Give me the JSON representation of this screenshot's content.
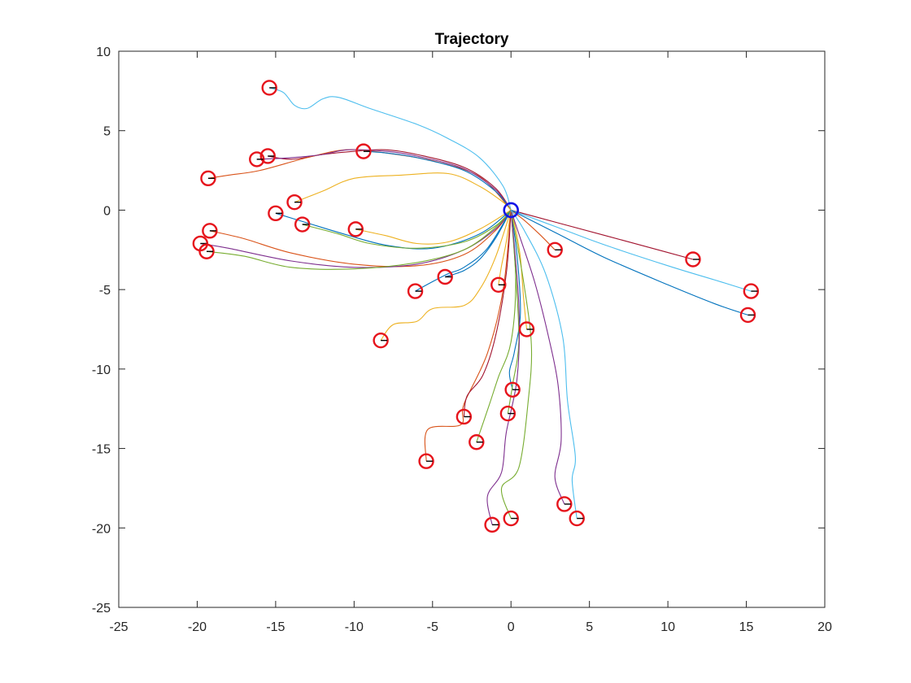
{
  "chart_data": {
    "type": "line",
    "title": "Trajectory",
    "xlabel": "",
    "ylabel": "",
    "xlim": [
      -25,
      20
    ],
    "ylim": [
      -25,
      10
    ],
    "xticks": [
      -25,
      -20,
      -15,
      -10,
      -5,
      0,
      5,
      10,
      15,
      20
    ],
    "yticks": [
      -25,
      -20,
      -15,
      -10,
      -5,
      0,
      5,
      10
    ],
    "grid": false,
    "legend": "none",
    "colors": {
      "axis": "#262626",
      "agent_marker": "#e6141c",
      "target_marker": "#1414e6"
    },
    "target": {
      "x": 0,
      "y": 0
    },
    "series": [
      {
        "color": "#4DBEEE",
        "points": [
          [
            -15.4,
            7.7
          ],
          [
            -14.5,
            7.4
          ],
          [
            -13.8,
            6.6
          ],
          [
            -13,
            6.4
          ],
          [
            -12,
            7.0
          ],
          [
            -11,
            7.1
          ],
          [
            -9,
            6.4
          ],
          [
            -6,
            5.4
          ],
          [
            -4,
            4.5
          ],
          [
            -2,
            3.3
          ],
          [
            -0.5,
            1.5
          ],
          [
            0,
            0
          ]
        ]
      },
      {
        "color": "#A2142F",
        "points": [
          [
            -15.5,
            3.4
          ],
          [
            -14,
            3.2
          ],
          [
            -12,
            3.5
          ],
          [
            -10,
            3.7
          ],
          [
            -8,
            3.8
          ],
          [
            -6,
            3.5
          ],
          [
            -3,
            2.7
          ],
          [
            -1,
            1.4
          ],
          [
            0,
            0
          ]
        ]
      },
      {
        "color": "#D95319",
        "points": [
          [
            -19.3,
            2.0
          ],
          [
            -18,
            2.2
          ],
          [
            -16,
            2.5
          ],
          [
            -13,
            3.3
          ],
          [
            -10.5,
            3.8
          ],
          [
            -8,
            3.6
          ],
          [
            -5,
            3.1
          ],
          [
            -2,
            2.1
          ],
          [
            0,
            0
          ]
        ]
      },
      {
        "color": "#7E2F8E",
        "points": [
          [
            -16.2,
            3.2
          ],
          [
            -14,
            3.3
          ],
          [
            -12,
            3.5
          ],
          [
            -10.4,
            3.8
          ],
          [
            -8,
            3.7
          ],
          [
            -6,
            3.4
          ],
          [
            -3,
            2.6
          ],
          [
            -1,
            1.3
          ],
          [
            0,
            0
          ]
        ]
      },
      {
        "color": "#0072BD",
        "points": [
          [
            -9.4,
            3.7
          ],
          [
            -8,
            3.6
          ],
          [
            -6,
            3.3
          ],
          [
            -3,
            2.5
          ],
          [
            -1,
            1.2
          ],
          [
            0,
            0
          ]
        ]
      },
      {
        "color": "#EDB120",
        "points": [
          [
            -13.8,
            0.5
          ],
          [
            -12,
            1.2
          ],
          [
            -10,
            2.0
          ],
          [
            -7,
            2.2
          ],
          [
            -4,
            2.3
          ],
          [
            -2,
            1.5
          ],
          [
            -0.5,
            0.5
          ],
          [
            0,
            0
          ]
        ]
      },
      {
        "color": "#0072BD",
        "points": [
          [
            -15.0,
            -0.2
          ],
          [
            -13,
            -0.8
          ],
          [
            -11,
            -1.4
          ],
          [
            -8,
            -2.2
          ],
          [
            -5,
            -2.4
          ],
          [
            -2,
            -1.5
          ],
          [
            0,
            0
          ]
        ]
      },
      {
        "color": "#77AC30",
        "points": [
          [
            -13.3,
            -0.9
          ],
          [
            -11,
            -1.5
          ],
          [
            -9,
            -2.1
          ],
          [
            -6,
            -2.4
          ],
          [
            -3,
            -2.0
          ],
          [
            -1,
            -1.0
          ],
          [
            0,
            0
          ]
        ]
      },
      {
        "color": "#EDB120",
        "points": [
          [
            -9.9,
            -1.2
          ],
          [
            -8,
            -1.6
          ],
          [
            -6,
            -2.1
          ],
          [
            -4,
            -2.0
          ],
          [
            -2,
            -1.2
          ],
          [
            0,
            0
          ]
        ]
      },
      {
        "color": "#D95319",
        "points": [
          [
            -19.2,
            -1.3
          ],
          [
            -17,
            -1.8
          ],
          [
            -14,
            -2.7
          ],
          [
            -10,
            -3.4
          ],
          [
            -6,
            -3.5
          ],
          [
            -3,
            -2.8
          ],
          [
            -1,
            -1.3
          ],
          [
            0,
            0
          ]
        ]
      },
      {
        "color": "#7E2F8E",
        "points": [
          [
            -19.8,
            -2.1
          ],
          [
            -18,
            -2.4
          ],
          [
            -14,
            -3.2
          ],
          [
            -10,
            -3.6
          ],
          [
            -6,
            -3.4
          ],
          [
            -3,
            -2.5
          ],
          [
            -1,
            -1.2
          ],
          [
            0,
            0
          ]
        ]
      },
      {
        "color": "#77AC30",
        "points": [
          [
            -19.4,
            -2.6
          ],
          [
            -17,
            -2.9
          ],
          [
            -14,
            -3.6
          ],
          [
            -10,
            -3.7
          ],
          [
            -6,
            -3.3
          ],
          [
            -3,
            -2.5
          ],
          [
            -1,
            -1.1
          ],
          [
            0,
            0
          ]
        ]
      },
      {
        "color": "#0072BD",
        "points": [
          [
            -6.1,
            -5.1
          ],
          [
            -5,
            -4.5
          ],
          [
            -4,
            -4.0
          ],
          [
            -3,
            -3.6
          ],
          [
            -1.5,
            -2.4
          ],
          [
            0,
            0
          ]
        ]
      },
      {
        "color": "#0072BD",
        "points": [
          [
            -4.2,
            -4.2
          ],
          [
            -3,
            -3.8
          ],
          [
            -2,
            -3.1
          ],
          [
            -1,
            -1.8
          ],
          [
            0,
            0
          ]
        ]
      },
      {
        "color": "#EDB120",
        "points": [
          [
            -8.3,
            -8.2
          ],
          [
            -7.5,
            -7.2
          ],
          [
            -6,
            -7.0
          ],
          [
            -5,
            -6.2
          ],
          [
            -3,
            -6.0
          ],
          [
            -2,
            -5.0
          ],
          [
            -1,
            -3.0
          ],
          [
            0,
            0
          ]
        ]
      },
      {
        "color": "#EDB120",
        "points": [
          [
            -0.8,
            -4.7
          ],
          [
            -0.6,
            -3.5
          ],
          [
            -0.3,
            -2.0
          ],
          [
            0,
            0
          ]
        ]
      },
      {
        "color": "#D95319",
        "points": [
          [
            2.8,
            -2.5
          ],
          [
            1.8,
            -1.5
          ],
          [
            0.8,
            -0.6
          ],
          [
            0,
            0
          ]
        ]
      },
      {
        "color": "#A2142F",
        "points": [
          [
            11.6,
            -3.1
          ],
          [
            9,
            -2.4
          ],
          [
            6,
            -1.6
          ],
          [
            3,
            -0.8
          ],
          [
            0,
            0
          ]
        ]
      },
      {
        "color": "#4DBEEE",
        "points": [
          [
            15.3,
            -5.1
          ],
          [
            13,
            -4.4
          ],
          [
            10,
            -3.5
          ],
          [
            6,
            -2.2
          ],
          [
            3,
            -1.1
          ],
          [
            0,
            0
          ]
        ]
      },
      {
        "color": "#0072BD",
        "points": [
          [
            15.1,
            -6.6
          ],
          [
            13,
            -5.9
          ],
          [
            10,
            -4.7
          ],
          [
            6,
            -3.0
          ],
          [
            3,
            -1.5
          ],
          [
            0,
            0
          ]
        ]
      },
      {
        "color": "#EDB120",
        "points": [
          [
            1.0,
            -7.5
          ],
          [
            0.8,
            -5.5
          ],
          [
            0.6,
            -3.0
          ],
          [
            0.3,
            -1.2
          ],
          [
            0,
            0
          ]
        ]
      },
      {
        "color": "#0072BD",
        "points": [
          [
            0.1,
            -11.3
          ],
          [
            -0.1,
            -10.2
          ],
          [
            0.2,
            -9.0
          ],
          [
            0.6,
            -6.5
          ],
          [
            0.4,
            -3.0
          ],
          [
            0,
            0
          ]
        ]
      },
      {
        "color": "#D95319",
        "points": [
          [
            -5.4,
            -15.8
          ],
          [
            -5.3,
            -13.8
          ],
          [
            -3.2,
            -13.5
          ],
          [
            -3.0,
            -12.2
          ],
          [
            -1.5,
            -9.0
          ],
          [
            -0.5,
            -5.0
          ],
          [
            0,
            0
          ]
        ]
      },
      {
        "color": "#A2142F",
        "points": [
          [
            -3.0,
            -13.0
          ],
          [
            -2.8,
            -11.7
          ],
          [
            -1.8,
            -10.4
          ],
          [
            -1.0,
            -8.0
          ],
          [
            -0.3,
            -4.0
          ],
          [
            0,
            0
          ]
        ]
      },
      {
        "color": "#77AC30",
        "points": [
          [
            -2.2,
            -14.6
          ],
          [
            -1.4,
            -12.3
          ],
          [
            -0.8,
            -10.5
          ],
          [
            0,
            -8.3
          ],
          [
            0.3,
            -4.5
          ],
          [
            0,
            0
          ]
        ]
      },
      {
        "color": "#77AC30",
        "points": [
          [
            -0.2,
            -12.8
          ],
          [
            0.1,
            -11.0
          ],
          [
            0.5,
            -8.3
          ],
          [
            0.3,
            -4.0
          ],
          [
            0,
            0
          ]
        ]
      },
      {
        "color": "#7E2F8E",
        "points": [
          [
            -1.2,
            -19.8
          ],
          [
            -1.5,
            -18.0
          ],
          [
            -0.6,
            -16.5
          ],
          [
            -0.3,
            -14.0
          ],
          [
            0.4,
            -10.5
          ],
          [
            0.5,
            -6.0
          ],
          [
            0,
            0
          ]
        ]
      },
      {
        "color": "#77AC30",
        "points": [
          [
            0,
            -19.4
          ],
          [
            -0.6,
            -17.5
          ],
          [
            0.5,
            -16.2
          ],
          [
            1.1,
            -12.0
          ],
          [
            1.3,
            -8.5
          ],
          [
            0.8,
            -4.5
          ],
          [
            0,
            0
          ]
        ]
      },
      {
        "color": "#7E2F8E",
        "points": [
          [
            3.4,
            -18.5
          ],
          [
            2.8,
            -16.8
          ],
          [
            3.2,
            -14.5
          ],
          [
            3.0,
            -11.0
          ],
          [
            2.4,
            -8.0
          ],
          [
            1.5,
            -4.5
          ],
          [
            0.5,
            -1.5
          ],
          [
            0,
            0
          ]
        ]
      },
      {
        "color": "#4DBEEE",
        "points": [
          [
            4.2,
            -19.4
          ],
          [
            3.9,
            -17.0
          ],
          [
            4.1,
            -15.5
          ],
          [
            3.6,
            -12.0
          ],
          [
            3.3,
            -8.0
          ],
          [
            2.2,
            -4.0
          ],
          [
            0.8,
            -1.2
          ],
          [
            0,
            0
          ]
        ]
      }
    ]
  }
}
